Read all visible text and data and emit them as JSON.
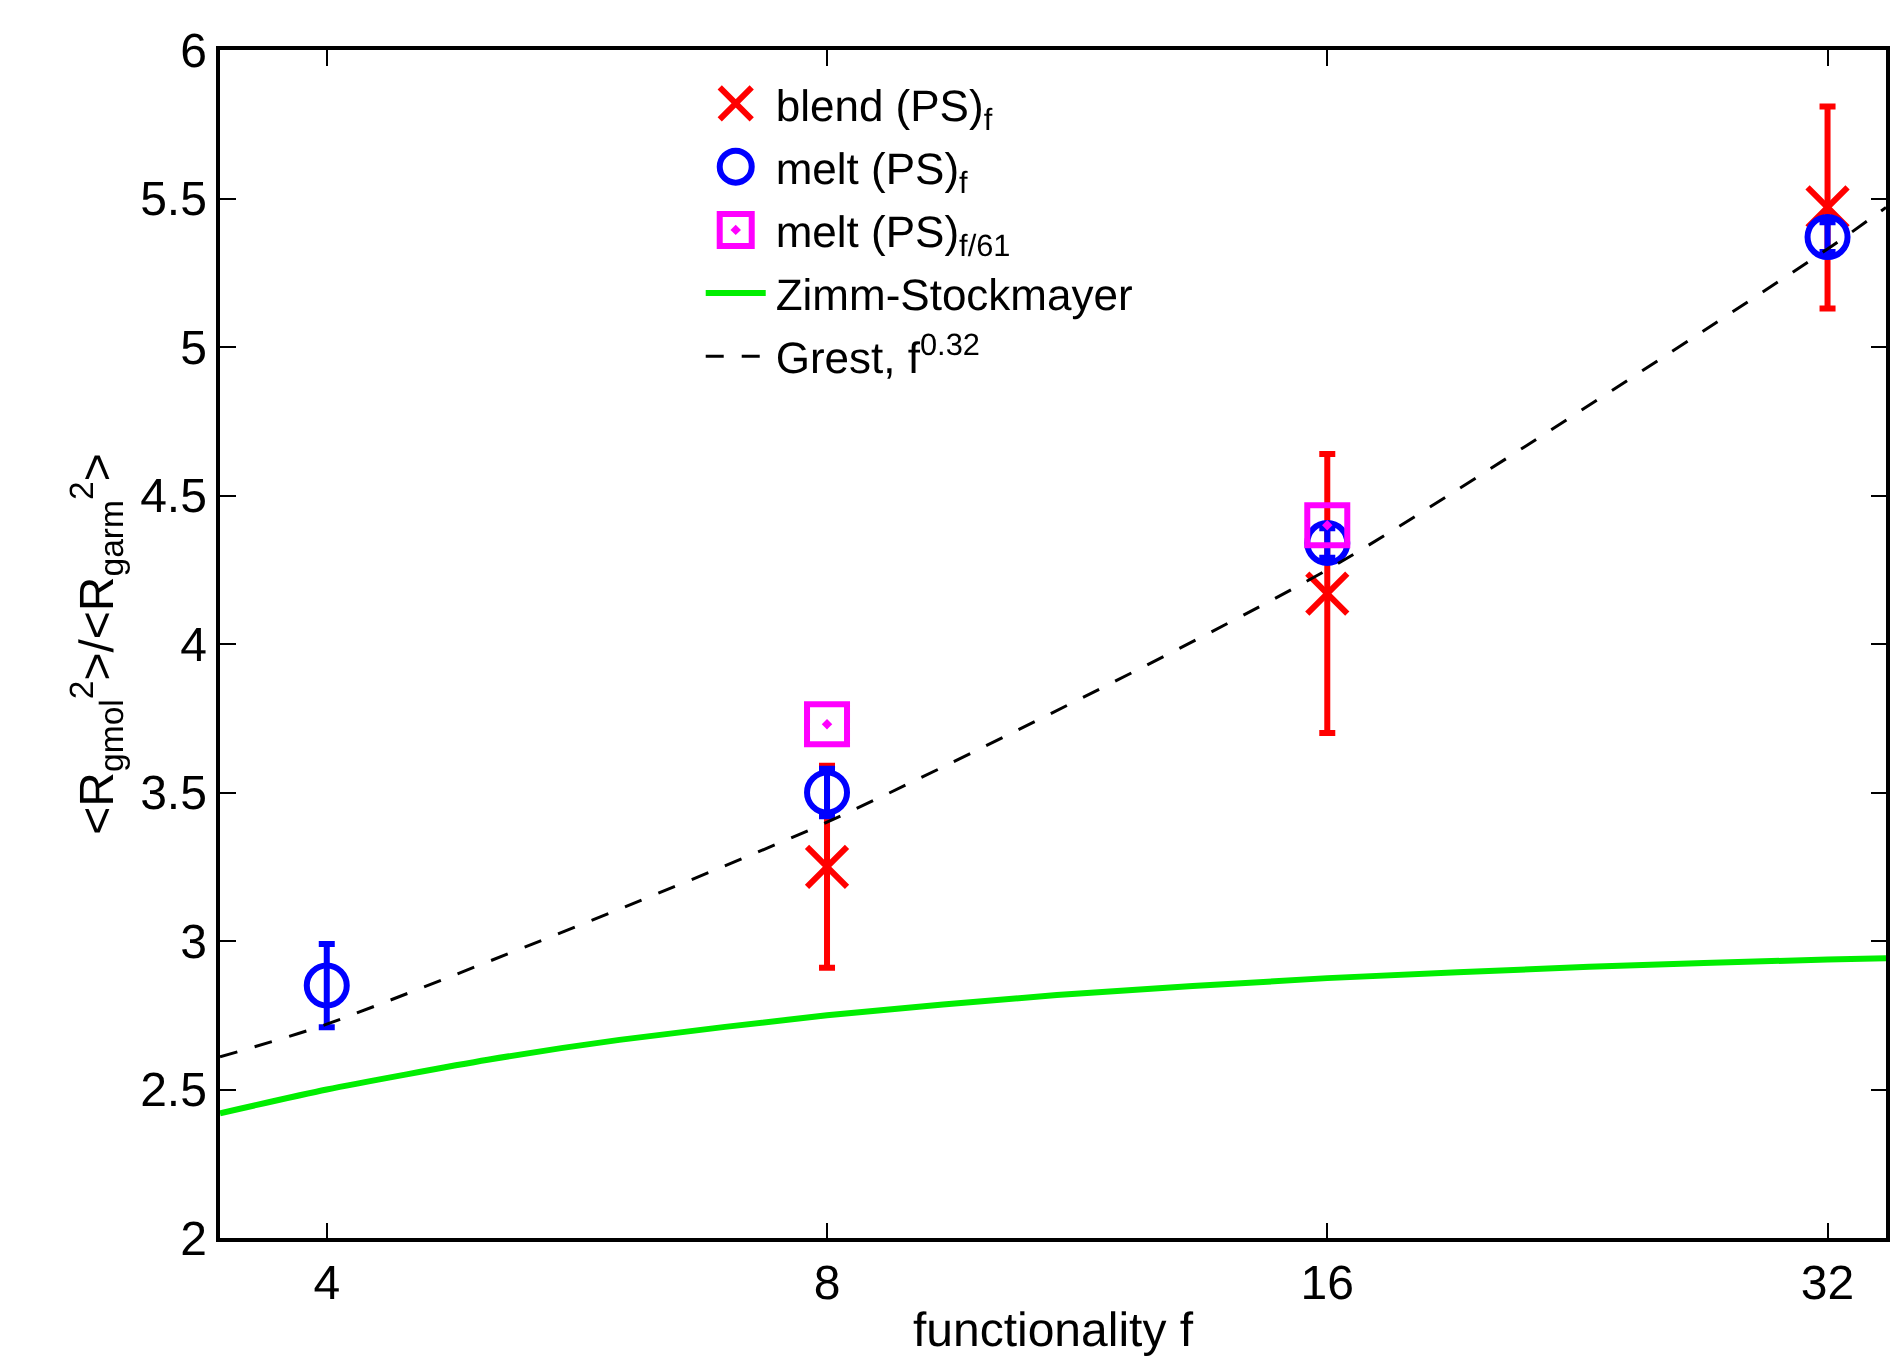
{
  "chart_data": {
    "type": "scatter",
    "xlabel": "functionality f",
    "ylabel": "<R$_{gmol}$$^{2}$>/<R$_{garm}$$^{2}$>",
    "log": "x",
    "xlim": [
      3.45,
      34.7
    ],
    "xticks": [
      4,
      8,
      16,
      32
    ],
    "ylim": [
      2,
      6
    ],
    "yticks": [
      2,
      2.5,
      3,
      3.5,
      4,
      4.5,
      5,
      5.5,
      6
    ],
    "legend": "top",
    "series": [
      {
        "name": "blend (PS)$_{f}$",
        "color": "#ff0000",
        "marker": "cross",
        "x": [
          8,
          16,
          32
        ],
        "values": [
          3.25,
          4.17,
          5.47
        ],
        "errors": [
          0.34,
          0.47,
          0.34
        ]
      },
      {
        "name": "melt (PS)$_{f}$",
        "color": "#0000ff",
        "marker": "circle",
        "x": [
          4,
          8,
          16,
          32
        ],
        "values": [
          2.85,
          3.5,
          4.34,
          5.37
        ],
        "errors": [
          0.14,
          0.08,
          0.05,
          0.05
        ]
      },
      {
        "name": "melt (PS)$_{f/61}$",
        "color": "#ff00ff",
        "marker": "square",
        "x": [
          8,
          16
        ],
        "values": [
          3.73,
          4.4
        ]
      },
      {
        "name": "Zimm-Stockmayer",
        "color": "#00ee00",
        "type": "line",
        "marker": "none",
        "line_style": "solid",
        "x": [
          3.45,
          4,
          5,
          6,
          8,
          11,
          16,
          23,
          32,
          34.7
        ],
        "values": [
          2.42,
          2.5,
          2.6,
          2.667,
          2.75,
          2.818,
          2.875,
          2.913,
          2.938,
          2.942
        ]
      },
      {
        "name": "Grest, f$^{0.32}$",
        "color": "#000000",
        "type": "line",
        "marker": "none",
        "line_style": "dashed",
        "x": [
          3.45,
          4,
          8,
          16,
          32,
          34.7
        ],
        "values": [
          2.61,
          2.72,
          3.4,
          4.25,
          5.33,
          5.47
        ]
      }
    ]
  }
}
